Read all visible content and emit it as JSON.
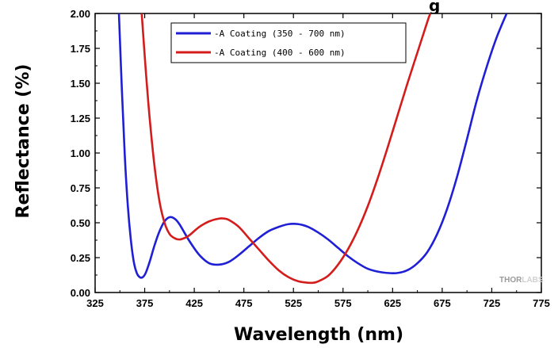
{
  "chart_data": {
    "type": "line",
    "title_fragment": "g",
    "xlabel": "Wavelength (nm)",
    "ylabel": "Reflectance (%)",
    "xlim": [
      325,
      775
    ],
    "ylim": [
      0,
      2.0
    ],
    "xticks": [
      "325",
      "375",
      "425",
      "475",
      "525",
      "575",
      "625",
      "675",
      "725",
      "775"
    ],
    "yticks": [
      "0.00",
      "0.25",
      "0.50",
      "0.75",
      "1.00",
      "1.25",
      "1.50",
      "1.75",
      "2.00"
    ],
    "legend_placement": "top-center",
    "series": [
      {
        "name": "-A Coating (350 - 700 nm)",
        "color": "#1f1fd6",
        "x": [
          349,
          352,
          355,
          358,
          361,
          364,
          367,
          370,
          373,
          376,
          380,
          385,
          390,
          395,
          400,
          405,
          410,
          420,
          430,
          440,
          450,
          460,
          470,
          480,
          490,
          500,
          510,
          520,
          530,
          540,
          550,
          560,
          570,
          580,
          590,
          600,
          610,
          620,
          630,
          640,
          650,
          660,
          670,
          680,
          690,
          700,
          710,
          720,
          730,
          740
        ],
        "y": [
          2.0,
          1.45,
          0.97,
          0.62,
          0.38,
          0.22,
          0.14,
          0.11,
          0.11,
          0.14,
          0.22,
          0.34,
          0.44,
          0.51,
          0.54,
          0.53,
          0.49,
          0.37,
          0.27,
          0.21,
          0.2,
          0.22,
          0.27,
          0.33,
          0.39,
          0.44,
          0.47,
          0.49,
          0.49,
          0.47,
          0.43,
          0.38,
          0.32,
          0.26,
          0.21,
          0.17,
          0.15,
          0.14,
          0.14,
          0.16,
          0.21,
          0.29,
          0.42,
          0.6,
          0.83,
          1.1,
          1.38,
          1.62,
          1.83,
          2.0
        ]
      },
      {
        "name": "-A Coating (400 - 600 nm)",
        "color": "#d41c1c",
        "x": [
          372,
          376,
          380,
          385,
          390,
          395,
          400,
          405,
          410,
          415,
          420,
          430,
          440,
          450,
          455,
          460,
          470,
          480,
          490,
          500,
          510,
          520,
          530,
          540,
          545,
          550,
          560,
          570,
          580,
          590,
          600,
          610,
          620,
          630,
          640,
          650,
          660,
          663
        ],
        "y": [
          2.0,
          1.6,
          1.25,
          0.9,
          0.65,
          0.5,
          0.42,
          0.39,
          0.38,
          0.39,
          0.41,
          0.47,
          0.51,
          0.53,
          0.53,
          0.52,
          0.47,
          0.39,
          0.31,
          0.23,
          0.16,
          0.11,
          0.08,
          0.07,
          0.07,
          0.08,
          0.12,
          0.2,
          0.31,
          0.45,
          0.62,
          0.82,
          1.04,
          1.27,
          1.5,
          1.72,
          1.94,
          2.0
        ]
      }
    ]
  },
  "watermark": {
    "brand_dark": "THOR",
    "brand_light": "LABS"
  }
}
